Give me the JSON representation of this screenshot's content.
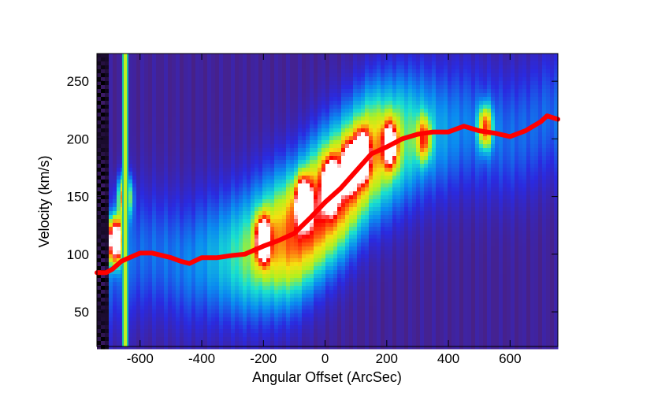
{
  "chart_data": {
    "type": "heatmap",
    "title": "",
    "xlabel": "Angular Offset (ArcSec)",
    "ylabel": "Velocity (km/s)",
    "xlim": [
      -740,
      755
    ],
    "ylim": [
      20,
      274
    ],
    "x_ticks": [
      -600,
      -400,
      -200,
      0,
      200,
      400,
      600
    ],
    "y_ticks": [
      50,
      100,
      150,
      200,
      250
    ],
    "colormap": [
      "#000000",
      "#4a2080",
      "#2a2ae0",
      "#0a8cf0",
      "#18e0d0",
      "#b0f020",
      "#f5e010",
      "#ff6010",
      "#ff0000",
      "#ffffff"
    ],
    "rotation_curve": {
      "color": "#ff0000",
      "x": [
        -740,
        -710,
        -690,
        -660,
        -600,
        -560,
        -500,
        -470,
        -440,
        -400,
        -350,
        -300,
        -260,
        -200,
        -150,
        -100,
        -50,
        0,
        50,
        100,
        150,
        200,
        250,
        300,
        350,
        400,
        450,
        500,
        550,
        600,
        650,
        700,
        720,
        755
      ],
      "y": [
        84,
        84,
        87,
        94,
        101,
        101,
        97,
        94,
        92,
        97,
        97,
        99,
        100,
        107,
        112,
        118,
        131,
        145,
        157,
        172,
        187,
        193,
        200,
        204,
        206,
        206,
        211,
        207,
        205,
        202,
        207,
        215,
        220,
        217
      ]
    },
    "emission_features": [
      {
        "x": -200,
        "y": 112,
        "intensity": 1.0
      },
      {
        "x": -70,
        "y": 145,
        "intensity": 1.05
      },
      {
        "x": 20,
        "y": 160,
        "intensity": 1.15
      },
      {
        "x": 80,
        "y": 175,
        "intensity": 0.9
      },
      {
        "x": 120,
        "y": 185,
        "intensity": 1.1
      },
      {
        "x": 210,
        "y": 195,
        "intensity": 0.85
      },
      {
        "x": 320,
        "y": 200,
        "intensity": 0.45
      },
      {
        "x": 520,
        "y": 210,
        "intensity": 0.55
      },
      {
        "x": -650,
        "y": 150,
        "intensity": 0.6
      },
      {
        "x": -680,
        "y": 112,
        "intensity": 1.2
      }
    ]
  }
}
